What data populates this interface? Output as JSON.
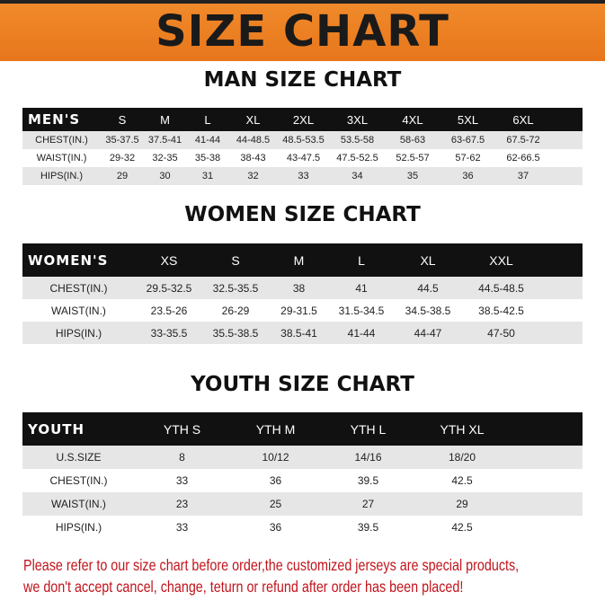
{
  "title": "SIZE CHART",
  "men": {
    "title": "MAN SIZE CHART",
    "header": [
      "MEN'S",
      "S",
      "M",
      "L",
      "XL",
      "2XL",
      "3XL",
      "4XL",
      "5XL",
      "6XL"
    ],
    "rows": [
      [
        "CHEST(IN.)",
        "35-37.5",
        "37.5-41",
        "41-44",
        "44-48.5",
        "48.5-53.5",
        "53.5-58",
        "58-63",
        "63-67.5",
        "67.5-72"
      ],
      [
        "WAIST(IN.)",
        "29-32",
        "32-35",
        "35-38",
        "38-43",
        "43-47.5",
        "47.5-52.5",
        "52.5-57",
        "57-62",
        "62-66.5"
      ],
      [
        "HIPS(IN.)",
        "29",
        "30",
        "31",
        "32",
        "33",
        "34",
        "35",
        "36",
        "37"
      ]
    ]
  },
  "women": {
    "title": "WOMEN SIZE CHART",
    "header": [
      "WOMEN'S",
      "XS",
      "S",
      "M",
      "L",
      "XL",
      "XXL"
    ],
    "rows": [
      [
        "CHEST(IN.)",
        "29.5-32.5",
        "32.5-35.5",
        "38",
        "41",
        "44.5",
        "44.5-48.5"
      ],
      [
        "WAIST(IN.)",
        "23.5-26",
        "26-29",
        "29-31.5",
        "31.5-34.5",
        "34.5-38.5",
        "38.5-42.5"
      ],
      [
        "HIPS(IN.)",
        "33-35.5",
        "35.5-38.5",
        "38.5-41",
        "41-44",
        "44-47",
        "47-50"
      ]
    ]
  },
  "youth": {
    "title": "YOUTH SIZE CHART",
    "header": [
      "YOUTH",
      "YTH S",
      "YTH M",
      "YTH L",
      "YTH XL"
    ],
    "rows": [
      [
        "U.S.SIZE",
        "8",
        "10/12",
        "14/16",
        "18/20"
      ],
      [
        "CHEST(IN.)",
        "33",
        "36",
        "39.5",
        "42.5"
      ],
      [
        "WAIST(IN.)",
        "23",
        "25",
        "27",
        "29"
      ],
      [
        "HIPS(IN.)",
        "33",
        "36",
        "39.5",
        "42.5"
      ]
    ]
  },
  "note": [
    "Please refer to our size chart before order,the customized jerseys are special products,",
    "we don't accept cancel, change, teturn or refund after order has been placed!"
  ],
  "colors": {
    "banner": "#ec7f22",
    "header_row": "#111111",
    "note": "#c0141c"
  }
}
